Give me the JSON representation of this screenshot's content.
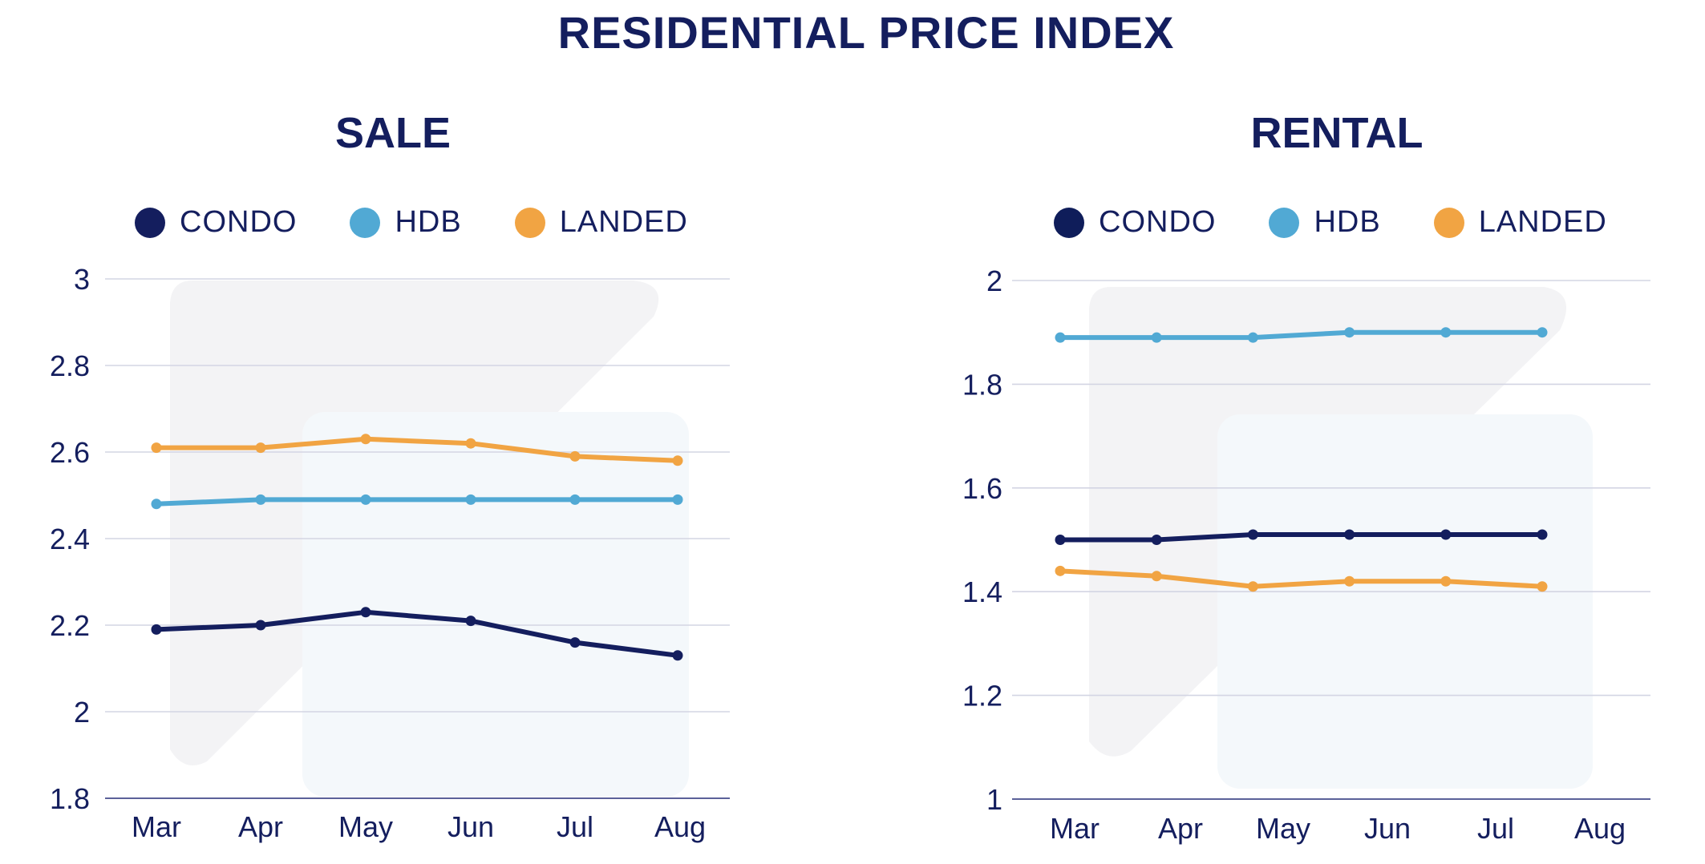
{
  "page": {
    "title": "RESIDENTIAL PRICE INDEX"
  },
  "colors": {
    "condo": "#141e5e",
    "hdb": "#51a9d4",
    "landed": "#f1a443",
    "grid": "#d3d5e3",
    "axis": "#5b6199",
    "text": "#141e5e"
  },
  "chart_data": [
    {
      "type": "line",
      "title": "SALE",
      "xlabel": "",
      "ylabel": "",
      "categories": [
        "Mar",
        "Apr",
        "May",
        "Jun",
        "Jul",
        "Aug"
      ],
      "ylim": [
        1.8,
        3.0
      ],
      "yticks": [
        "3",
        "2.8",
        "2.6",
        "2.4",
        "2.2",
        "2",
        "1.8"
      ],
      "grid": true,
      "legend": "top",
      "legend_labels": [
        "CONDO",
        "HDB",
        "LANDED"
      ],
      "series": [
        {
          "name": "CONDO",
          "values": [
            2.19,
            2.2,
            2.23,
            2.21,
            2.16,
            2.13
          ]
        },
        {
          "name": "HDB",
          "values": [
            2.48,
            2.49,
            2.49,
            2.49,
            2.49,
            2.49
          ]
        },
        {
          "name": "LANDED",
          "values": [
            2.61,
            2.61,
            2.63,
            2.62,
            2.59,
            2.58
          ]
        }
      ]
    },
    {
      "type": "line",
      "title": "RENTAL",
      "xlabel": "",
      "ylabel": "",
      "categories": [
        "Mar",
        "Apr",
        "May",
        "Jun",
        "Jul",
        "Aug"
      ],
      "ylim": [
        1.0,
        2.0
      ],
      "yticks": [
        "2",
        "1.8",
        "1.6",
        "1.4",
        "1.2",
        "1"
      ],
      "grid": true,
      "legend": "top",
      "legend_labels": [
        "CONDO",
        "HDB",
        "LANDED"
      ],
      "series": [
        {
          "name": "CONDO",
          "values": [
            1.5,
            1.5,
            1.51,
            1.51,
            1.51,
            1.51
          ]
        },
        {
          "name": "HDB",
          "values": [
            1.89,
            1.89,
            1.89,
            1.9,
            1.9,
            1.9
          ]
        },
        {
          "name": "LANDED",
          "values": [
            1.44,
            1.43,
            1.41,
            1.42,
            1.42,
            1.41
          ]
        }
      ]
    }
  ]
}
